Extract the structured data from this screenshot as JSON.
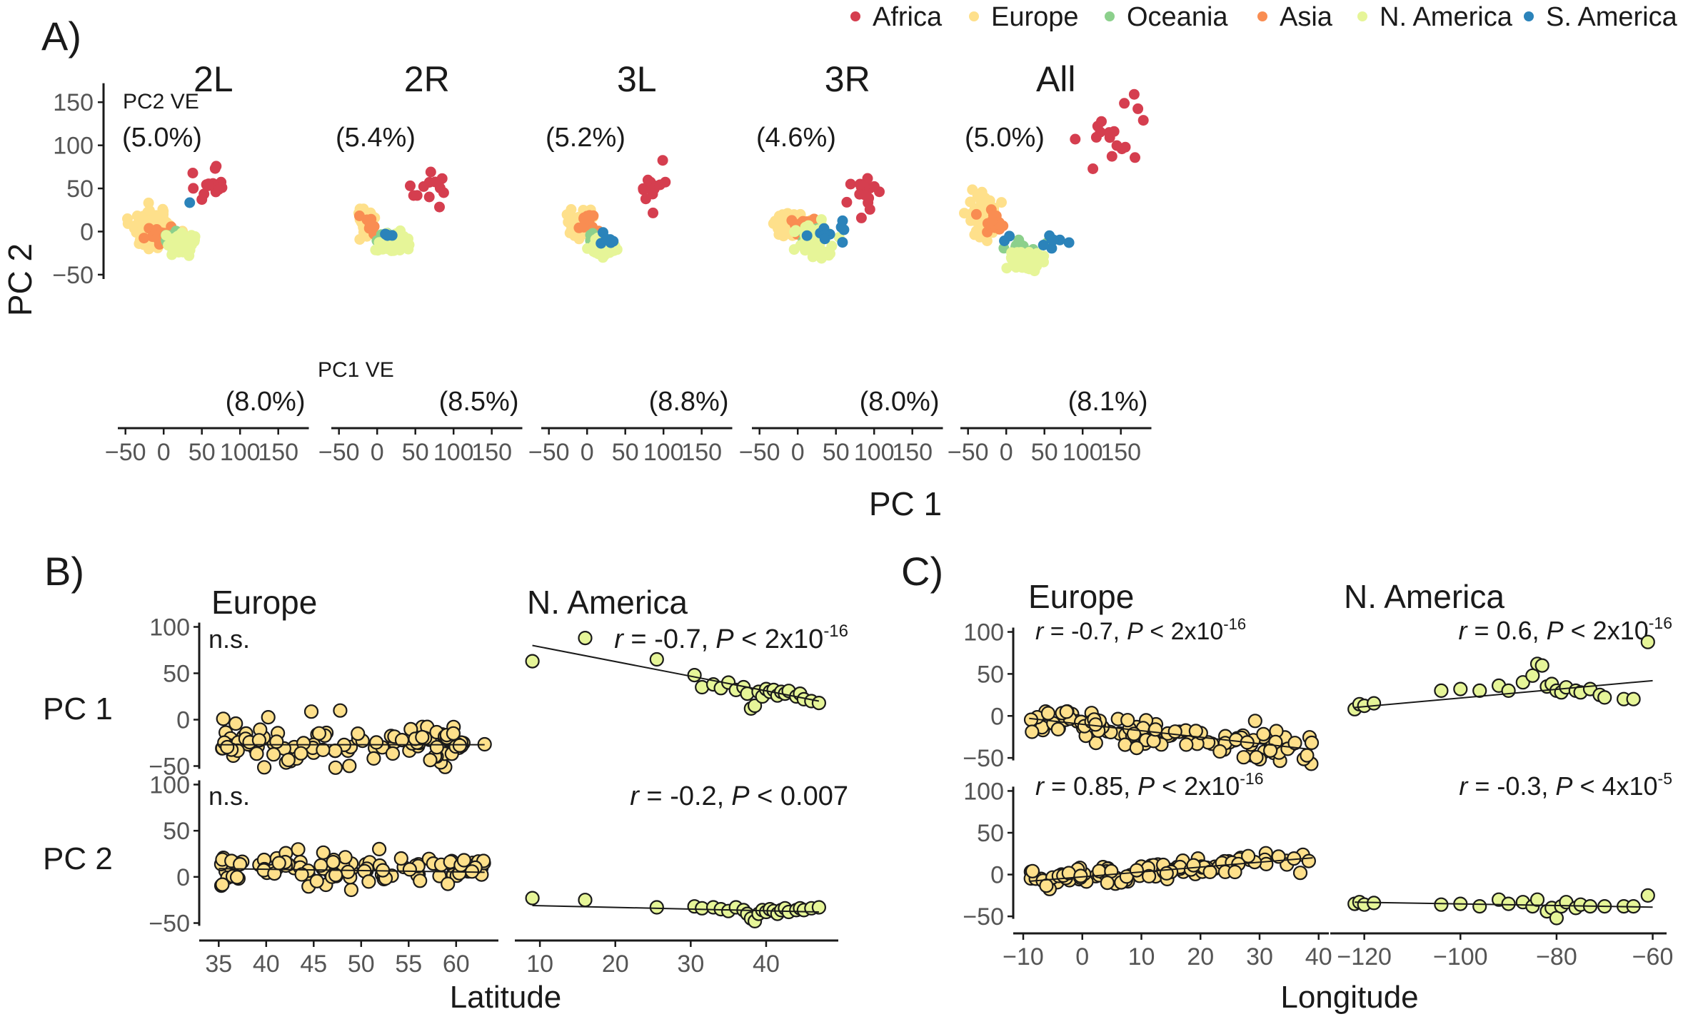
{
  "figure": {
    "legend": {
      "placement": "top-right",
      "entries": [
        {
          "name": "Africa",
          "color": "#d53e4f"
        },
        {
          "name": "Europe",
          "color": "#fee08b"
        },
        {
          "name": "Oceania",
          "color": "#8cd08c"
        },
        {
          "name": "Asia",
          "color": "#f98d52"
        },
        {
          "name": "N. America",
          "color": "#e6f598"
        },
        {
          "name": "S. America",
          "color": "#2b83ba"
        }
      ]
    },
    "panel_labels": {
      "a": "A)",
      "b": "B)",
      "c": "C)"
    },
    "panel_a": {
      "ylabel": "PC 2",
      "xlabel": "PC 1",
      "pc2_ve_label": "PC2 VE",
      "pc1_ve_label": "PC1 VE",
      "xticks": [
        -50,
        0,
        50,
        100,
        150
      ],
      "yticks": [
        -50,
        0,
        50,
        100,
        150
      ],
      "xtick_labels": [
        "−50",
        "0",
        "50",
        "100",
        "150"
      ],
      "ytick_labels": [
        "−50",
        "0",
        "50",
        "100",
        "150"
      ]
    },
    "panel_b": {
      "xlabel": "Latitude",
      "row_labels": [
        "PC 1",
        "PC 2"
      ],
      "columns": [
        "Europe",
        "N. America"
      ]
    },
    "panel_c": {
      "xlabel": "Longitude",
      "row_labels": [
        "PC 1",
        "PC 2"
      ],
      "columns": [
        "Europe",
        "N. America"
      ]
    },
    "stats": {
      "r": "r",
      "eq": " = ",
      "comma": ",",
      "P": "P",
      "lt": " < ",
      "pow_base": "2x10",
      "pow_exp": "-16",
      "ns": "n.s.",
      "b_pc1_na_r": "-0.7",
      "b_pc2_na_r": "-0.2",
      "b_pc2_na_p": "0.007",
      "c_pc1_eu_r": "-0.7",
      "c_pc1_na_r": "0.6",
      "c_pc2_eu_r": "0.85",
      "c_pc2_na_r": "-0.3",
      "c_pc2_na_p_base": "4x10",
      "c_pc2_na_p_exp": "-5"
    }
  },
  "chart_data": [
    {
      "type": "scatter",
      "title": "2L",
      "xlabel": "PC 1",
      "ylabel": "PC 2",
      "xlim": [
        -60,
        190
      ],
      "ylim": [
        -60,
        175
      ],
      "pc1_ve": "(8.0%)",
      "pc2_ve": "(5.0%)",
      "clusters": [
        {
          "group": "Europe",
          "cx": -12,
          "cy": 3,
          "sx": 14,
          "sy": 10,
          "n": 90
        },
        {
          "group": "Asia",
          "cx": -8,
          "cy": -1,
          "sx": 8,
          "sy": 6,
          "n": 18
        },
        {
          "group": "Oceania",
          "cx": 10,
          "cy": -8,
          "sx": 8,
          "sy": 6,
          "n": 14
        },
        {
          "group": "N. America",
          "cx": 25,
          "cy": -15,
          "sx": 11,
          "sy": 7,
          "n": 65
        },
        {
          "group": "S. America",
          "cx": 36,
          "cy": 32,
          "sx": 1,
          "sy": 1,
          "n": 1
        },
        {
          "group": "Africa",
          "cx": 62,
          "cy": 55,
          "sx": 10,
          "sy": 13,
          "n": 14
        }
      ]
    },
    {
      "type": "scatter",
      "title": "2R",
      "xlabel": "PC 1",
      "ylabel": "PC 2",
      "xlim": [
        -60,
        190
      ],
      "ylim": [
        -60,
        175
      ],
      "pc1_ve": "(8.5%)",
      "pc2_ve": "(5.4%)",
      "clusters": [
        {
          "group": "Europe",
          "cx": -15,
          "cy": 8,
          "sx": 6,
          "sy": 8,
          "n": 45
        },
        {
          "group": "Asia",
          "cx": -12,
          "cy": 5,
          "sx": 4,
          "sy": 5,
          "n": 8
        },
        {
          "group": "Oceania",
          "cx": 8,
          "cy": -8,
          "sx": 7,
          "sy": 4,
          "n": 10
        },
        {
          "group": "N. America",
          "cx": 20,
          "cy": -14,
          "sx": 9,
          "sy": 6,
          "n": 50
        },
        {
          "group": "S. America",
          "cx": 22,
          "cy": -5,
          "sx": 8,
          "sy": 3,
          "n": 5
        },
        {
          "group": "Africa",
          "cx": 68,
          "cy": 52,
          "sx": 10,
          "sy": 12,
          "n": 13
        }
      ]
    },
    {
      "type": "scatter",
      "title": "3L",
      "xlabel": "PC 1",
      "ylabel": "PC 2",
      "xlim": [
        -60,
        190
      ],
      "ylim": [
        -60,
        175
      ],
      "pc1_ve": "(8.8%)",
      "pc2_ve": "(5.2%)",
      "clusters": [
        {
          "group": "Europe",
          "cx": -12,
          "cy": 10,
          "sx": 8,
          "sy": 8,
          "n": 60
        },
        {
          "group": "Asia",
          "cx": 0,
          "cy": 8,
          "sx": 8,
          "sy": 6,
          "n": 10
        },
        {
          "group": "Oceania",
          "cx": 10,
          "cy": -5,
          "sx": 6,
          "sy": 4,
          "n": 8
        },
        {
          "group": "N. America",
          "cx": 20,
          "cy": -20,
          "sx": 8,
          "sy": 6,
          "n": 50
        },
        {
          "group": "S. America",
          "cx": 25,
          "cy": -10,
          "sx": 8,
          "sy": 6,
          "n": 6
        },
        {
          "group": "Africa",
          "cx": 90,
          "cy": 50,
          "sx": 12,
          "sy": 13,
          "n": 14
        }
      ]
    },
    {
      "type": "scatter",
      "title": "3R",
      "xlabel": "PC 1",
      "ylabel": "PC 2",
      "xlim": [
        -60,
        190
      ],
      "ylim": [
        -60,
        175
      ],
      "pc1_ve": "(8.0%)",
      "pc2_ve": "(4.6%)",
      "clusters": [
        {
          "group": "Europe",
          "cx": -8,
          "cy": 8,
          "sx": 12,
          "sy": 6,
          "n": 70
        },
        {
          "group": "Asia",
          "cx": 5,
          "cy": 10,
          "sx": 8,
          "sy": 5,
          "n": 14
        },
        {
          "group": "Oceania",
          "cx": 15,
          "cy": -3,
          "sx": 8,
          "sy": 4,
          "n": 10
        },
        {
          "group": "N. America",
          "cx": 20,
          "cy": -10,
          "sx": 14,
          "sy": 10,
          "n": 45
        },
        {
          "group": "S. America",
          "cx": 40,
          "cy": -2,
          "sx": 20,
          "sy": 6,
          "n": 10
        },
        {
          "group": "Africa",
          "cx": 88,
          "cy": 50,
          "sx": 12,
          "sy": 12,
          "n": 16
        }
      ]
    },
    {
      "type": "scatter",
      "title": "All",
      "xlabel": "PC 1",
      "ylabel": "PC 2",
      "xlim": [
        -60,
        190
      ],
      "ylim": [
        -60,
        175
      ],
      "pc1_ve": "(8.1%)",
      "pc2_ve": "(5.0%)",
      "clusters": [
        {
          "group": "Europe",
          "cx": -30,
          "cy": 18,
          "sx": 10,
          "sy": 10,
          "n": 70
        },
        {
          "group": "Asia",
          "cx": -15,
          "cy": 10,
          "sx": 9,
          "sy": 8,
          "n": 18
        },
        {
          "group": "Oceania",
          "cx": 20,
          "cy": -18,
          "sx": 14,
          "sy": 5,
          "n": 18
        },
        {
          "group": "N. America",
          "cx": 25,
          "cy": -35,
          "sx": 16,
          "sy": 6,
          "n": 45
        },
        {
          "group": "S. America",
          "cx": 60,
          "cy": -12,
          "sx": 25,
          "sy": 8,
          "n": 9
        },
        {
          "group": "Africa",
          "cx": 150,
          "cy": 115,
          "sx": 25,
          "sy": 30,
          "n": 18
        }
      ]
    },
    {
      "type": "scatter",
      "title": "Europe",
      "panel": "B",
      "ylabel": "PC 1",
      "xlabel": "Latitude",
      "group": "Europe",
      "xlim": [
        34,
        64
      ],
      "ylim": [
        -55,
        105
      ],
      "xticks": [
        35,
        40,
        45,
        50,
        55,
        60
      ],
      "yticks": [
        -50,
        0,
        50,
        100
      ],
      "x_range": [
        35,
        63
      ],
      "n_points": 110,
      "slope": 0,
      "intercept": -26,
      "noise": 12,
      "fit": [
        [
          35,
          -27
        ],
        [
          63,
          -27
        ]
      ]
    },
    {
      "type": "scatter",
      "title": "N. America",
      "panel": "B",
      "ylabel": "PC 1",
      "xlabel": "Latitude",
      "group": "N. America",
      "xlim": [
        8,
        49
      ],
      "ylim": [
        -55,
        105
      ],
      "xticks": [
        10,
        20,
        30,
        40
      ],
      "yticks": [
        -50,
        0,
        50,
        100
      ],
      "points": [
        [
          9,
          63
        ],
        [
          16,
          88
        ],
        [
          25.5,
          65
        ],
        [
          30.5,
          48
        ],
        [
          31.5,
          35
        ],
        [
          33,
          38
        ],
        [
          34,
          34
        ],
        [
          35,
          40
        ],
        [
          36,
          32
        ],
        [
          37,
          35
        ],
        [
          37.5,
          28
        ],
        [
          38,
          12
        ],
        [
          38.5,
          15
        ],
        [
          39,
          30
        ],
        [
          39.5,
          25
        ],
        [
          40,
          33
        ],
        [
          40.5,
          30
        ],
        [
          41,
          32
        ],
        [
          41.5,
          26
        ],
        [
          42,
          30
        ],
        [
          42.5,
          28
        ],
        [
          43,
          31
        ],
        [
          44,
          25
        ],
        [
          44.5,
          28
        ],
        [
          45,
          22
        ],
        [
          46,
          20
        ],
        [
          47,
          18
        ]
      ],
      "fit": [
        [
          9,
          80
        ],
        [
          47,
          20
        ]
      ]
    },
    {
      "type": "scatter",
      "title": "Europe",
      "panel": "B",
      "ylabel": "PC 2",
      "xlabel": "Latitude",
      "group": "Europe",
      "xlim": [
        34,
        64
      ],
      "ylim": [
        -55,
        105
      ],
      "xticks": [
        35,
        40,
        45,
        50,
        55,
        60
      ],
      "yticks": [
        -50,
        0,
        50,
        100
      ],
      "x_range": [
        35,
        63
      ],
      "n_points": 110,
      "slope": 0,
      "intercept": 8,
      "noise": 9,
      "fit": [
        [
          35,
          9
        ],
        [
          63,
          5
        ]
      ]
    },
    {
      "type": "scatter",
      "title": "N. America",
      "panel": "B",
      "ylabel": "PC 2",
      "xlabel": "Latitude",
      "group": "N. America",
      "xlim": [
        8,
        49
      ],
      "ylim": [
        -55,
        105
      ],
      "xticks": [
        10,
        20,
        30,
        40
      ],
      "yticks": [
        -50,
        0,
        50,
        100
      ],
      "points": [
        [
          9,
          -23
        ],
        [
          16,
          -25
        ],
        [
          25.5,
          -33
        ],
        [
          30.5,
          -32
        ],
        [
          31.5,
          -34
        ],
        [
          33,
          -33
        ],
        [
          34,
          -35
        ],
        [
          35,
          -37
        ],
        [
          36,
          -33
        ],
        [
          37,
          -36
        ],
        [
          37.5,
          -40
        ],
        [
          38,
          -45
        ],
        [
          38.5,
          -48
        ],
        [
          39,
          -40
        ],
        [
          39.5,
          -36
        ],
        [
          40,
          -38
        ],
        [
          40.5,
          -35
        ],
        [
          41,
          -37
        ],
        [
          41.5,
          -40
        ],
        [
          42,
          -36
        ],
        [
          42.5,
          -34
        ],
        [
          43,
          -38
        ],
        [
          44,
          -36
        ],
        [
          44.5,
          -34
        ],
        [
          45,
          -36
        ],
        [
          46,
          -34
        ],
        [
          47,
          -33
        ]
      ],
      "fit": [
        [
          9,
          -31
        ],
        [
          47,
          -38
        ]
      ]
    },
    {
      "type": "scatter",
      "title": "Europe",
      "panel": "C",
      "ylabel": "PC 1",
      "xlabel": "Longitude",
      "group": "Europe",
      "xlim": [
        -10,
        41
      ],
      "ylim": [
        -55,
        120
      ],
      "xticks": [
        -10,
        0,
        10,
        20,
        30,
        40
      ],
      "yticks": [
        -50,
        0,
        50,
        100
      ],
      "x_range": [
        -9,
        39
      ],
      "n_points": 110,
      "slope": -0.78,
      "intercept": -10,
      "noise": 10,
      "fit": [
        [
          -9,
          -3
        ],
        [
          39,
          -40
        ]
      ]
    },
    {
      "type": "scatter",
      "title": "N. America",
      "panel": "C",
      "ylabel": "PC 1",
      "xlabel": "Longitude",
      "group": "N. America",
      "xlim": [
        -125,
        -58
      ],
      "ylim": [
        -55,
        120
      ],
      "xticks": [
        -120,
        -100,
        -80,
        -60
      ],
      "yticks": [
        -50,
        0,
        50,
        100
      ],
      "points": [
        [
          -122,
          8
        ],
        [
          -121,
          14
        ],
        [
          -120,
          12
        ],
        [
          -118,
          15
        ],
        [
          -104,
          30
        ],
        [
          -100,
          32
        ],
        [
          -96,
          30
        ],
        [
          -92,
          36
        ],
        [
          -90,
          30
        ],
        [
          -87,
          40
        ],
        [
          -85,
          48
        ],
        [
          -84,
          62
        ],
        [
          -83,
          60
        ],
        [
          -82,
          35
        ],
        [
          -81,
          38
        ],
        [
          -80,
          30
        ],
        [
          -79,
          28
        ],
        [
          -78,
          34
        ],
        [
          -76,
          30
        ],
        [
          -75,
          28
        ],
        [
          -73,
          32
        ],
        [
          -71,
          25
        ],
        [
          -70,
          22
        ],
        [
          -66,
          20
        ],
        [
          -64,
          20
        ],
        [
          -61,
          88
        ]
      ],
      "fit": [
        [
          -122,
          10
        ],
        [
          -60,
          42
        ]
      ]
    },
    {
      "type": "scatter",
      "title": "Europe",
      "panel": "C",
      "ylabel": "PC 2",
      "xlabel": "Longitude",
      "group": "Europe",
      "xlim": [
        -10,
        41
      ],
      "ylim": [
        -55,
        120
      ],
      "xticks": [
        -10,
        0,
        10,
        20,
        30,
        40
      ],
      "yticks": [
        -50,
        0,
        50,
        100
      ],
      "x_range": [
        -9,
        39
      ],
      "n_points": 110,
      "slope": 0.58,
      "intercept": -3,
      "noise": 6,
      "fit": [
        [
          -9,
          -8
        ],
        [
          39,
          20
        ]
      ]
    },
    {
      "type": "scatter",
      "title": "N. America",
      "panel": "C",
      "ylabel": "PC 2",
      "xlabel": "Longitude",
      "group": "N. America",
      "xlim": [
        -125,
        -58
      ],
      "ylim": [
        -55,
        120
      ],
      "xticks": [
        -120,
        -100,
        -80,
        -60
      ],
      "yticks": [
        -50,
        0,
        50,
        100
      ],
      "points": [
        [
          -122,
          -35
        ],
        [
          -121,
          -33
        ],
        [
          -120,
          -36
        ],
        [
          -118,
          -34
        ],
        [
          -104,
          -36
        ],
        [
          -100,
          -35
        ],
        [
          -96,
          -38
        ],
        [
          -92,
          -30
        ],
        [
          -90,
          -35
        ],
        [
          -87,
          -33
        ],
        [
          -85,
          -38
        ],
        [
          -84,
          -30
        ],
        [
          -82,
          -44
        ],
        [
          -81,
          -40
        ],
        [
          -80,
          -52
        ],
        [
          -79,
          -38
        ],
        [
          -78,
          -33
        ],
        [
          -76,
          -40
        ],
        [
          -75,
          -36
        ],
        [
          -73,
          -38
        ],
        [
          -70,
          -38
        ],
        [
          -66,
          -38
        ],
        [
          -64,
          -38
        ],
        [
          -61,
          -25
        ]
      ],
      "fit": [
        [
          -122,
          -33
        ],
        [
          -60,
          -39
        ]
      ]
    }
  ]
}
